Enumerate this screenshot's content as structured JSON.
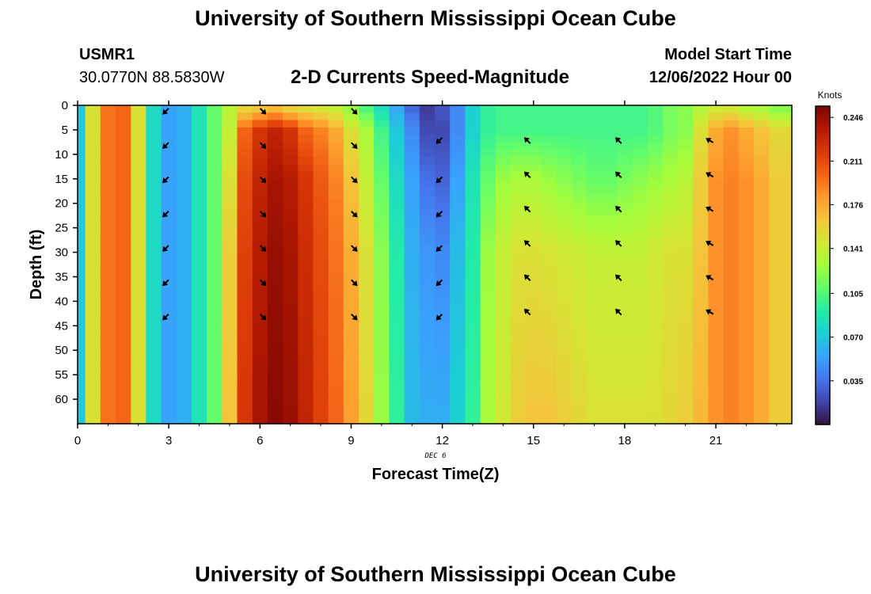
{
  "page": {
    "title": "University of Southern Mississippi Ocean Cube",
    "title_repeat": "University of Southern Mississippi Ocean Cube"
  },
  "header": {
    "station_id": "USMR1",
    "coords": "30.0770N  88.5830W",
    "subtitle": "2-D Currents Speed-Magnitude",
    "model_start_label": "Model Start Time",
    "model_start_value": "12/06/2022 Hour 00"
  },
  "chart_data": {
    "type": "heatmap",
    "title": "2-D Currents Speed-Magnitude",
    "xlabel": "Forecast Time(Z)",
    "ylabel": "Depth (ft)",
    "date_label": "DEC 6",
    "xlim": [
      0,
      23.5
    ],
    "ylim": [
      65,
      0
    ],
    "x_ticks": [
      0,
      3,
      6,
      9,
      12,
      15,
      18,
      21
    ],
    "y_ticks": [
      0,
      5,
      10,
      15,
      20,
      25,
      30,
      35,
      40,
      45,
      50,
      55,
      60
    ],
    "colorbar": {
      "label": "Knots",
      "min": 0.0,
      "max": 0.255,
      "ticks": [
        0.246,
        0.211,
        0.176,
        0.141,
        0.105,
        0.07,
        0.035
      ],
      "colors": [
        "#30123b",
        "#4145ab",
        "#4675ed",
        "#39a2fc",
        "#1bcfd4",
        "#24eca6",
        "#61fc6c",
        "#a4fc3b",
        "#d1e834",
        "#f3c63a",
        "#fe9b2d",
        "#f36315",
        "#d93806",
        "#b11901",
        "#7a0403"
      ]
    },
    "columns": [
      {
        "hour": 0,
        "speeds": [
          0.07,
          0.07,
          0.07,
          0.07,
          0.07
        ]
      },
      {
        "hour": 0.5,
        "speeds": [
          0.15,
          0.15,
          0.15,
          0.15,
          0.15
        ]
      },
      {
        "hour": 1,
        "speeds": [
          0.195,
          0.195,
          0.195,
          0.195,
          0.195
        ]
      },
      {
        "hour": 1.5,
        "speeds": [
          0.2,
          0.2,
          0.2,
          0.2,
          0.2
        ]
      },
      {
        "hour": 2,
        "speeds": [
          0.15,
          0.15,
          0.15,
          0.15,
          0.15
        ]
      },
      {
        "hour": 2.5,
        "speeds": [
          0.08,
          0.08,
          0.08,
          0.08,
          0.08
        ]
      },
      {
        "hour": 3,
        "speeds": [
          0.055,
          0.055,
          0.055,
          0.055,
          0.055
        ]
      },
      {
        "hour": 3.5,
        "speeds": [
          0.06,
          0.06,
          0.06,
          0.06,
          0.06
        ]
      },
      {
        "hour": 4,
        "speeds": [
          0.085,
          0.085,
          0.085,
          0.085,
          0.085
        ]
      },
      {
        "hour": 4.5,
        "speeds": [
          0.11,
          0.11,
          0.11,
          0.11,
          0.11
        ]
      },
      {
        "hour": 5,
        "speeds": [
          0.135,
          0.14,
          0.15,
          0.16,
          0.165
        ]
      },
      {
        "hour": 5.5,
        "speeds": [
          0.15,
          0.2,
          0.21,
          0.215,
          0.22
        ]
      },
      {
        "hour": 6,
        "speeds": [
          0.155,
          0.22,
          0.23,
          0.235,
          0.24
        ]
      },
      {
        "hour": 6.5,
        "speeds": [
          0.16,
          0.23,
          0.24,
          0.245,
          0.25
        ]
      },
      {
        "hour": 7,
        "speeds": [
          0.15,
          0.22,
          0.235,
          0.24,
          0.245
        ]
      },
      {
        "hour": 7.5,
        "speeds": [
          0.145,
          0.2,
          0.22,
          0.225,
          0.23
        ]
      },
      {
        "hour": 8,
        "speeds": [
          0.14,
          0.19,
          0.205,
          0.21,
          0.215
        ]
      },
      {
        "hour": 8.5,
        "speeds": [
          0.135,
          0.175,
          0.19,
          0.195,
          0.2
        ]
      },
      {
        "hour": 9,
        "speeds": [
          0.12,
          0.15,
          0.165,
          0.175,
          0.18
        ]
      },
      {
        "hour": 9.5,
        "speeds": [
          0.1,
          0.13,
          0.14,
          0.15,
          0.155
        ]
      },
      {
        "hour": 10,
        "speeds": [
          0.08,
          0.1,
          0.11,
          0.12,
          0.125
        ]
      },
      {
        "hour": 10.5,
        "speeds": [
          0.055,
          0.07,
          0.08,
          0.09,
          0.095
        ]
      },
      {
        "hour": 11,
        "speeds": [
          0.03,
          0.045,
          0.055,
          0.06,
          0.065
        ]
      },
      {
        "hour": 11.5,
        "speeds": [
          0.015,
          0.02,
          0.035,
          0.05,
          0.06
        ]
      },
      {
        "hour": 12,
        "speeds": [
          0.025,
          0.02,
          0.03,
          0.045,
          0.06
        ]
      },
      {
        "hour": 12.5,
        "speeds": [
          0.045,
          0.045,
          0.055,
          0.065,
          0.075
        ]
      },
      {
        "hour": 13,
        "speeds": [
          0.075,
          0.075,
          0.085,
          0.09,
          0.095
        ]
      },
      {
        "hour": 13.5,
        "speeds": [
          0.095,
          0.095,
          0.11,
          0.125,
          0.13
        ]
      },
      {
        "hour": 14,
        "speeds": [
          0.1,
          0.1,
          0.125,
          0.14,
          0.145
        ]
      },
      {
        "hour": 14.5,
        "speeds": [
          0.1,
          0.1,
          0.13,
          0.15,
          0.16
        ]
      },
      {
        "hour": 15,
        "speeds": [
          0.1,
          0.1,
          0.13,
          0.15,
          0.165
        ]
      },
      {
        "hour": 15.5,
        "speeds": [
          0.1,
          0.1,
          0.125,
          0.148,
          0.165
        ]
      },
      {
        "hour": 16,
        "speeds": [
          0.1,
          0.1,
          0.12,
          0.145,
          0.16
        ]
      },
      {
        "hour": 16.5,
        "speeds": [
          0.1,
          0.1,
          0.115,
          0.143,
          0.155
        ]
      },
      {
        "hour": 17,
        "speeds": [
          0.1,
          0.1,
          0.11,
          0.14,
          0.15
        ]
      },
      {
        "hour": 17.5,
        "speeds": [
          0.1,
          0.1,
          0.11,
          0.14,
          0.15
        ]
      },
      {
        "hour": 18,
        "speeds": [
          0.1,
          0.1,
          0.115,
          0.14,
          0.15
        ]
      },
      {
        "hour": 18.5,
        "speeds": [
          0.1,
          0.1,
          0.12,
          0.14,
          0.15
        ]
      },
      {
        "hour": 19,
        "speeds": [
          0.105,
          0.105,
          0.125,
          0.145,
          0.15
        ]
      },
      {
        "hour": 19.5,
        "speeds": [
          0.115,
          0.115,
          0.13,
          0.15,
          0.155
        ]
      },
      {
        "hour": 20,
        "speeds": [
          0.12,
          0.12,
          0.135,
          0.15,
          0.16
        ]
      },
      {
        "hour": 20.5,
        "speeds": [
          0.13,
          0.15,
          0.16,
          0.165,
          0.17
        ]
      },
      {
        "hour": 21,
        "speeds": [
          0.14,
          0.175,
          0.185,
          0.185,
          0.185
        ]
      },
      {
        "hour": 21.5,
        "speeds": [
          0.14,
          0.185,
          0.19,
          0.19,
          0.19
        ]
      },
      {
        "hour": 22,
        "speeds": [
          0.13,
          0.175,
          0.185,
          0.185,
          0.185
        ]
      },
      {
        "hour": 22.5,
        "speeds": [
          0.125,
          0.165,
          0.175,
          0.175,
          0.175
        ]
      },
      {
        "hour": 23,
        "speeds": [
          0.115,
          0.155,
          0.16,
          0.16,
          0.16
        ]
      }
    ],
    "depth_profile": [
      0,
      5,
      15,
      30,
      65
    ],
    "arrow_columns": [
      {
        "hour": 2.9,
        "depths": [
          0,
          7,
          14,
          21,
          28,
          35,
          42
        ],
        "direction_deg": 225
      },
      {
        "hour": 6.1,
        "depths": [
          0,
          7,
          14,
          21,
          28,
          35,
          42
        ],
        "direction_deg": 135
      },
      {
        "hour": 9.1,
        "depths": [
          0,
          7,
          14,
          21,
          28,
          35,
          42
        ],
        "direction_deg": 135
      },
      {
        "hour": 11.9,
        "depths": [
          6,
          14,
          21,
          28,
          35,
          42
        ],
        "direction_deg": 225
      },
      {
        "hour": 14.8,
        "depths": [
          6,
          13,
          20,
          27,
          34,
          41
        ],
        "direction_deg": 315
      },
      {
        "hour": 17.8,
        "depths": [
          6,
          13,
          20,
          27,
          34,
          41
        ],
        "direction_deg": 315
      },
      {
        "hour": 20.8,
        "depths": [
          6,
          13,
          20,
          27,
          34,
          41
        ],
        "direction_deg": 300
      }
    ]
  }
}
